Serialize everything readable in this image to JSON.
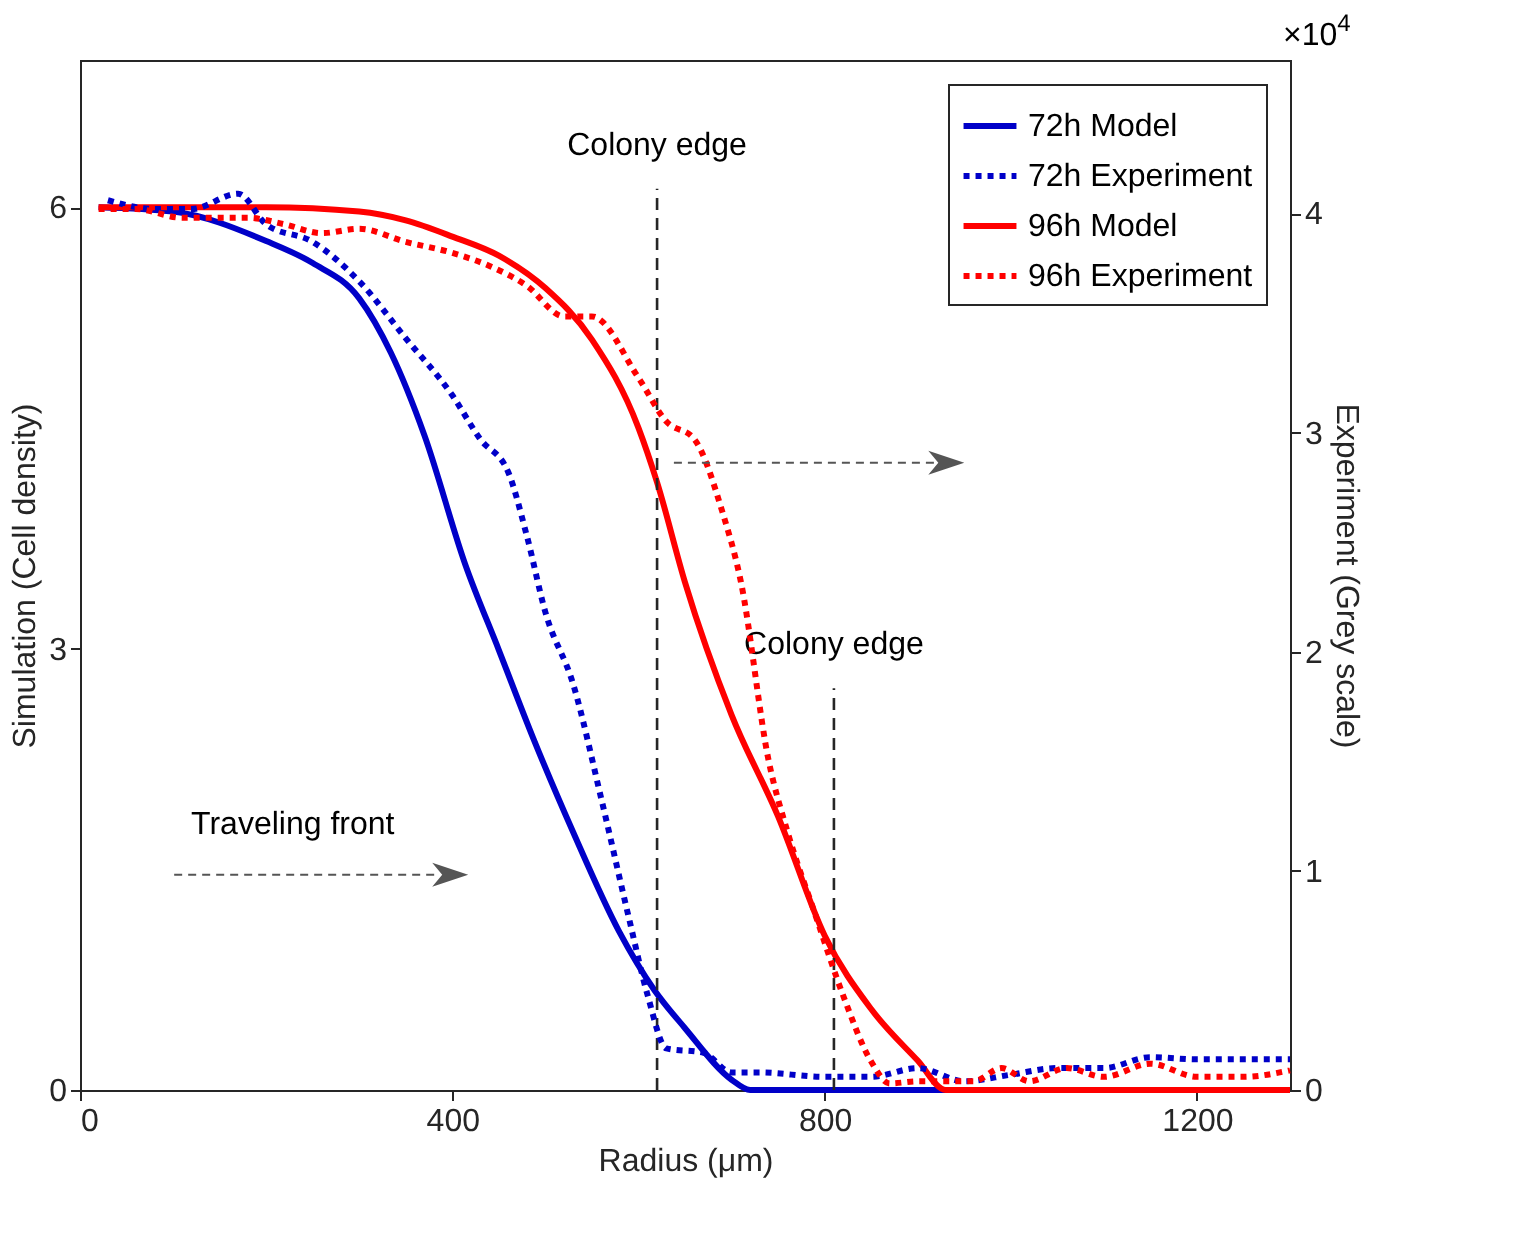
{
  "chart_data": {
    "type": "line",
    "xlabel": "Radius (μm)",
    "ylabel": "Simulation (Cell density)",
    "y2label": "Experiment (Grey scale)",
    "xlim": [
      0,
      1300
    ],
    "xticks": [
      0,
      400,
      800,
      1200
    ],
    "ylim": [
      0,
      7
    ],
    "yticks": [
      0,
      3,
      6
    ],
    "y2lim": [
      0,
      4.7
    ],
    "y2ticks": [
      0,
      1,
      2,
      3,
      4
    ],
    "legend": "top right",
    "series": [
      {
        "name": "72h Model",
        "color": "#0000c8",
        "line_style": "solid",
        "x": [
          20,
          100,
          200,
          250,
          300,
          334,
          370,
          414,
          450,
          487,
          530,
          579,
          617,
          650,
          700,
          720,
          1300
        ],
        "values": [
          6.0,
          5.97,
          5.77,
          5.62,
          5.38,
          5.01,
          4.45,
          3.57,
          2.99,
          2.39,
          1.75,
          1.08,
          0.68,
          0.42,
          0.07,
          0,
          0
        ]
      },
      {
        "name": "72h Experiment",
        "color": "#0000c8",
        "line_style": "dotted",
        "axis": "y2",
        "x": [
          30,
          80,
          120,
          170,
          200,
          250,
          300,
          350,
          400,
          430,
          460,
          480,
          500,
          530,
          560,
          590,
          610,
          630,
          670,
          700,
          730,
          800,
          850,
          900,
          950,
          1000,
          1050,
          1100,
          1150,
          1200,
          1250,
          1300
        ],
        "values": [
          4.06,
          4.02,
          4.02,
          4.09,
          3.95,
          3.87,
          3.69,
          3.43,
          3.17,
          2.97,
          2.82,
          2.53,
          2.18,
          1.85,
          1.33,
          0.78,
          0.43,
          0.19,
          0.17,
          0.08,
          0.08,
          0.06,
          0.06,
          0.1,
          0.04,
          0.07,
          0.1,
          0.1,
          0.15,
          0.14,
          0.14,
          0.14
        ]
      },
      {
        "name": "96h Model",
        "color": "#ff0000",
        "line_style": "solid",
        "x": [
          20,
          200,
          300,
          350,
          400,
          450,
          500,
          550,
          600,
          620,
          650,
          700,
          750,
          800,
          850,
          900,
          930,
          1300
        ],
        "values": [
          6.0,
          6.0,
          5.97,
          5.91,
          5.8,
          5.67,
          5.45,
          5.1,
          4.5,
          4.13,
          3.45,
          2.55,
          1.86,
          1.05,
          0.55,
          0.2,
          0,
          0
        ]
      },
      {
        "name": "96h Experiment",
        "color": "#ff0000",
        "line_style": "dotted",
        "axis": "y2",
        "x": [
          20,
          60,
          110,
          150,
          180,
          220,
          260,
          300,
          350,
          400,
          440,
          480,
          520,
          550,
          600,
          630,
          660,
          690,
          710,
          740,
          760,
          790,
          820,
          850,
          870,
          900,
          930,
          960,
          990,
          1020,
          1060,
          1100,
          1150,
          1200,
          1250,
          1300
        ],
        "values": [
          4.02,
          4.02,
          3.98,
          3.98,
          3.98,
          3.95,
          3.91,
          3.93,
          3.87,
          3.82,
          3.76,
          3.67,
          3.53,
          3.53,
          3.25,
          3.05,
          2.97,
          2.64,
          2.32,
          1.5,
          1.18,
          0.8,
          0.43,
          0.13,
          0.03,
          0.04,
          0.04,
          0.04,
          0.1,
          0.04,
          0.1,
          0.06,
          0.12,
          0.06,
          0.06,
          0.09
        ]
      }
    ],
    "ref_lines": [
      {
        "axis": "x",
        "value": 620,
        "label": "Colony edge",
        "line_style": "dashed",
        "color": "#262626"
      },
      {
        "axis": "x",
        "value": 810,
        "label": "Colony edge",
        "line_style": "dashed",
        "color": "#262626"
      }
    ],
    "annotations": [
      "Traveling front",
      "×10$^{4}$"
    ]
  }
}
